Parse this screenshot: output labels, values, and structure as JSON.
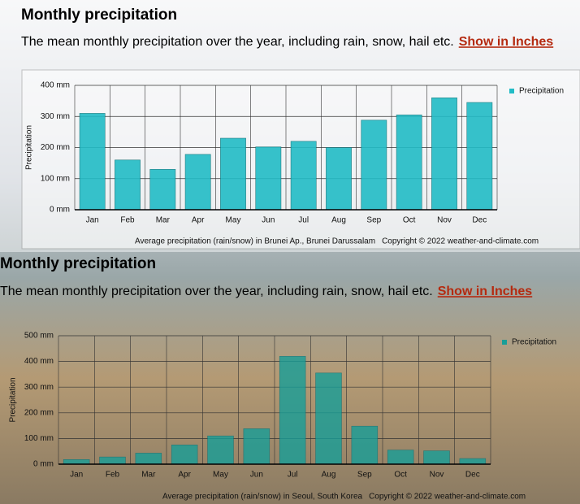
{
  "chart_data": [
    {
      "type": "bar",
      "title": "Monthly precipitation",
      "subtitle": "The mean monthly precipitation over the year, including rain, snow, hail etc.",
      "link": "Show in Inches",
      "y_label": "Precipitation",
      "caption": "Average precipitation (rain/snow) in Brunei Ap., Brunei Darussalam",
      "copyright": "Copyright © 2022  weather-and-climate.com",
      "categories": [
        "Jan",
        "Feb",
        "Mar",
        "Apr",
        "May",
        "Jun",
        "Jul",
        "Aug",
        "Sep",
        "Oct",
        "Nov",
        "Dec"
      ],
      "series": [
        {
          "name": "Precipitation",
          "color": "#22bcc6",
          "values": [
            310,
            160,
            130,
            178,
            230,
            202,
            220,
            200,
            288,
            305,
            360,
            345
          ]
        }
      ],
      "ylim": [
        0,
        400
      ],
      "yticks": [
        {
          "value": 0,
          "label": "0 mm"
        },
        {
          "value": 100,
          "label": "100 mm"
        },
        {
          "value": 200,
          "label": "200 mm"
        },
        {
          "value": 300,
          "label": "300 mm"
        },
        {
          "value": 400,
          "label": "400 mm"
        }
      ],
      "grid": true,
      "legend": "right"
    },
    {
      "type": "bar",
      "title": "Monthly precipitation",
      "subtitle": "The mean monthly precipitation over the year, including rain, snow, hail etc.",
      "link": "Show in Inches",
      "y_label": "Precipitation",
      "caption": "Average precipitation (rain/snow) in Seoul, South Korea",
      "copyright": "Copyright © 2022  weather-and-climate.com",
      "categories": [
        "Jan",
        "Feb",
        "Mar",
        "Apr",
        "May",
        "Jun",
        "Jul",
        "Aug",
        "Sep",
        "Oct",
        "Nov",
        "Dec"
      ],
      "series": [
        {
          "name": "Precipitation",
          "color": "#179e98",
          "values": [
            18,
            28,
            43,
            75,
            110,
            138,
            420,
            355,
            148,
            55,
            52,
            22
          ]
        }
      ],
      "ylim": [
        0,
        500
      ],
      "yticks": [
        {
          "value": 0,
          "label": "0 mm"
        },
        {
          "value": 100,
          "label": "100 mm"
        },
        {
          "value": 200,
          "label": "200 mm"
        },
        {
          "value": 300,
          "label": "300 mm"
        },
        {
          "value": 400,
          "label": "400 mm"
        },
        {
          "value": 500,
          "label": "500 mm"
        }
      ],
      "grid": true,
      "legend": "right"
    }
  ]
}
